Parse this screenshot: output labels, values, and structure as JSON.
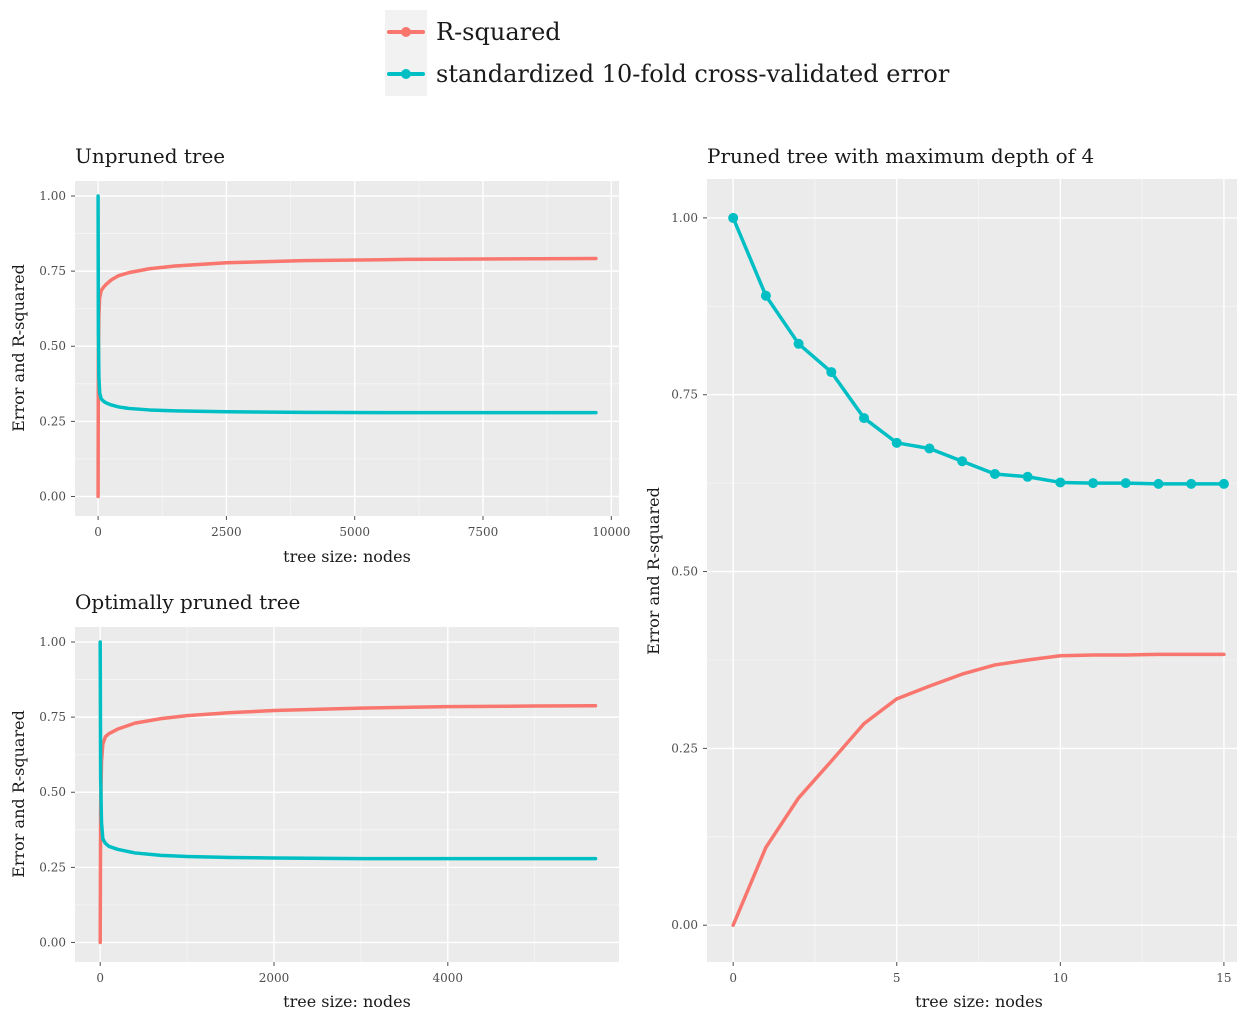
{
  "legend": {
    "entries": [
      {
        "label": "R-squared",
        "color": "#F8766D"
      },
      {
        "label": "standardized 10-fold cross-validated error",
        "color": "#00BFC4"
      }
    ],
    "position": "top-center"
  },
  "chart_data": [
    {
      "type": "line",
      "title": "Unpruned tree",
      "xlabel": "tree size: nodes",
      "ylabel": "Error and R-squared",
      "xlim": [
        -450,
        10150
      ],
      "ylim": [
        -0.065,
        1.05
      ],
      "xticks": [
        0,
        2500,
        5000,
        7500,
        10000
      ],
      "xtick_labels": [
        "0",
        "2500",
        "5000",
        "7500",
        "10000"
      ],
      "yticks": [
        0,
        0.25,
        0.5,
        0.75,
        1.0
      ],
      "ytick_labels": [
        "0.00",
        "0.25",
        "0.50",
        "0.75",
        "1.00"
      ],
      "grid": true,
      "markers": false,
      "series": [
        {
          "name": "R-squared",
          "color": "#F8766D",
          "x": [
            0,
            5,
            15,
            30,
            60,
            100,
            150,
            250,
            400,
            600,
            1000,
            1500,
            2500,
            4000,
            6000,
            8000,
            9700
          ],
          "y": [
            0,
            0.45,
            0.6,
            0.66,
            0.685,
            0.695,
            0.705,
            0.72,
            0.735,
            0.745,
            0.758,
            0.767,
            0.778,
            0.785,
            0.789,
            0.791,
            0.792
          ]
        },
        {
          "name": "standardized 10-fold cross-validated error",
          "color": "#00BFC4",
          "x": [
            0,
            5,
            15,
            30,
            60,
            100,
            150,
            250,
            400,
            600,
            1000,
            1500,
            2500,
            4000,
            6000,
            8000,
            9700
          ],
          "y": [
            1.0,
            0.55,
            0.4,
            0.345,
            0.325,
            0.318,
            0.312,
            0.305,
            0.298,
            0.293,
            0.288,
            0.285,
            0.282,
            0.28,
            0.279,
            0.279,
            0.279
          ]
        }
      ]
    },
    {
      "type": "line",
      "title": "Optimally pruned tree",
      "xlabel": "tree size: nodes",
      "ylabel": "Error and R-squared",
      "xlim": [
        -290,
        5970
      ],
      "ylim": [
        -0.065,
        1.05
      ],
      "xticks": [
        0,
        2000,
        4000
      ],
      "xtick_labels": [
        "0",
        "2000",
        "4000"
      ],
      "yticks": [
        0,
        0.25,
        0.5,
        0.75,
        1.0
      ],
      "ytick_labels": [
        "0.00",
        "0.25",
        "0.50",
        "0.75",
        "1.00"
      ],
      "grid": true,
      "markers": false,
      "series": [
        {
          "name": "R-squared",
          "color": "#F8766D",
          "x": [
            0,
            5,
            15,
            30,
            60,
            100,
            200,
            400,
            700,
            1000,
            1500,
            2000,
            3000,
            4000,
            5000,
            5700
          ],
          "y": [
            0,
            0.45,
            0.6,
            0.66,
            0.685,
            0.695,
            0.71,
            0.73,
            0.745,
            0.755,
            0.765,
            0.772,
            0.78,
            0.785,
            0.787,
            0.788
          ]
        },
        {
          "name": "standardized 10-fold cross-validated error",
          "color": "#00BFC4",
          "x": [
            0,
            5,
            15,
            30,
            60,
            100,
            200,
            400,
            700,
            1000,
            1500,
            2000,
            3000,
            4000,
            5000,
            5700
          ],
          "y": [
            1.0,
            0.55,
            0.4,
            0.345,
            0.33,
            0.32,
            0.31,
            0.298,
            0.29,
            0.286,
            0.283,
            0.281,
            0.279,
            0.279,
            0.279,
            0.279
          ]
        }
      ]
    },
    {
      "type": "line",
      "title": "Pruned tree with maximum depth of 4",
      "xlabel": "tree size: nodes",
      "ylabel": "Error and R-squared",
      "xlim": [
        -0.8,
        15.4
      ],
      "ylim": [
        -0.052,
        1.055
      ],
      "xticks": [
        0,
        5,
        10,
        15
      ],
      "xtick_labels": [
        "0",
        "5",
        "10",
        "15"
      ],
      "yticks": [
        0,
        0.25,
        0.5,
        0.75,
        1.0
      ],
      "ytick_labels": [
        "0.00",
        "0.25",
        "0.50",
        "0.75",
        "1.00"
      ],
      "grid": true,
      "series": [
        {
          "name": "R-squared",
          "color": "#F8766D",
          "markers": false,
          "x": [
            0,
            1,
            2,
            3,
            4,
            5,
            6,
            7,
            8,
            9,
            10,
            11,
            12,
            13,
            14,
            15
          ],
          "y": [
            0.0,
            0.11,
            0.18,
            0.232,
            0.285,
            0.32,
            0.338,
            0.355,
            0.368,
            0.375,
            0.381,
            0.382,
            0.382,
            0.383,
            0.383,
            0.383
          ]
        },
        {
          "name": "standardized 10-fold cross-validated error",
          "color": "#00BFC4",
          "markers": true,
          "x": [
            0,
            1,
            2,
            3,
            4,
            5,
            6,
            7,
            8,
            9,
            10,
            11,
            12,
            13,
            14,
            15
          ],
          "y": [
            1.0,
            0.89,
            0.822,
            0.782,
            0.717,
            0.682,
            0.674,
            0.656,
            0.638,
            0.634,
            0.626,
            0.625,
            0.625,
            0.624,
            0.624,
            0.624
          ]
        }
      ]
    }
  ]
}
